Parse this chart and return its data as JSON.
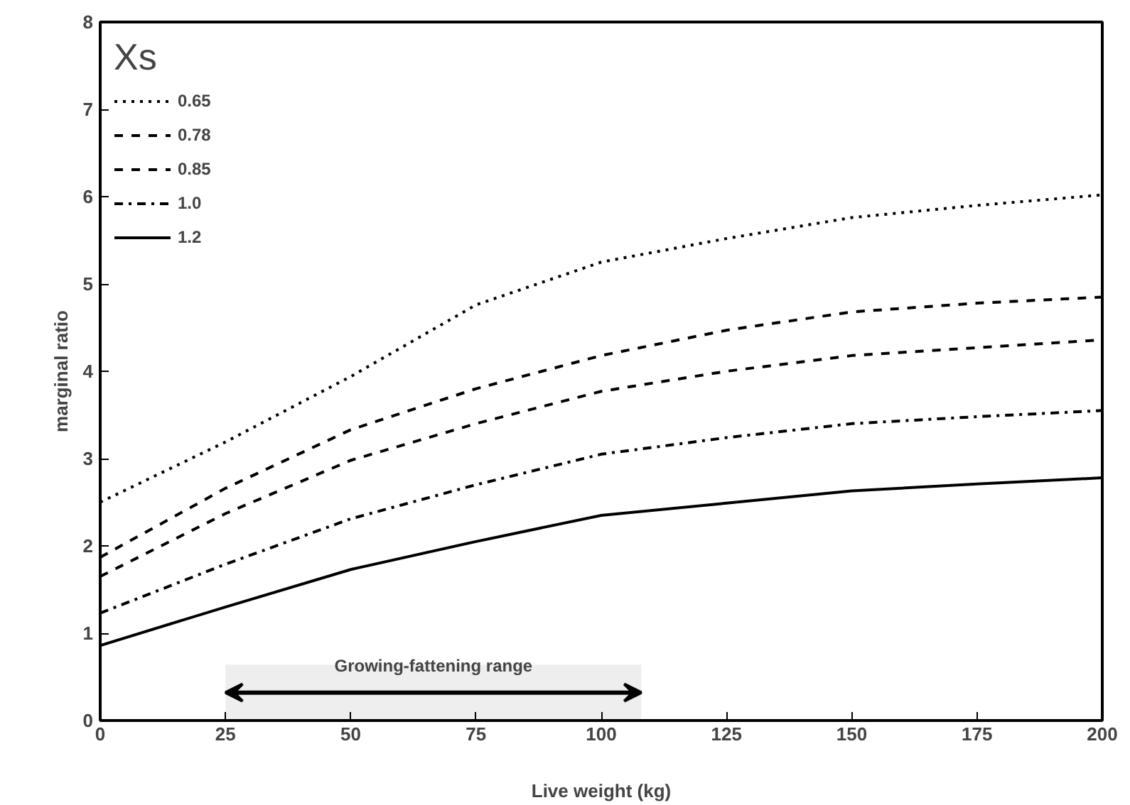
{
  "chart_data": {
    "type": "line",
    "xlabel": "Live weight (kg)",
    "ylabel": "marginal ratio",
    "legend_title": "Xs",
    "legend": "top left",
    "grid": false,
    "x": [
      0,
      25,
      50,
      75,
      100,
      125,
      150,
      175,
      200
    ],
    "xlim": [
      0,
      200
    ],
    "xticks": [
      0,
      25,
      50,
      75,
      100,
      125,
      150,
      175,
      200
    ],
    "ylim": [
      0,
      8
    ],
    "yticks": [
      0,
      1,
      2,
      3,
      4,
      5,
      6,
      7,
      8
    ],
    "series": [
      {
        "name": "0.65",
        "color": "#000000",
        "line_style": "dotted",
        "values": [
          2.5,
          3.19,
          3.94,
          4.76,
          5.25,
          5.52,
          5.76,
          5.9,
          6.02
        ]
      },
      {
        "name": "0.78",
        "color": "#000000",
        "line_style": "dashed",
        "values": [
          1.87,
          2.66,
          3.33,
          3.8,
          4.18,
          4.47,
          4.68,
          4.78,
          4.85
        ]
      },
      {
        "name": "0.85",
        "color": "#000000",
        "line_style": "dashed",
        "values": [
          1.65,
          2.37,
          2.98,
          3.4,
          3.77,
          4.0,
          4.18,
          4.27,
          4.36
        ]
      },
      {
        "name": "1.0",
        "color": "#000000",
        "line_style": "dashdot",
        "values": [
          1.23,
          1.79,
          2.31,
          2.7,
          3.05,
          3.24,
          3.4,
          3.48,
          3.55
        ]
      },
      {
        "name": "1.2",
        "color": "#000000",
        "line_style": "solid",
        "values": [
          0.86,
          1.3,
          1.73,
          2.05,
          2.35,
          2.49,
          2.63,
          2.71,
          2.78
        ]
      }
    ],
    "bands": [
      {
        "axis": "x",
        "from": 25,
        "to": 108,
        "label": "Growing-fattening range",
        "color": "#eeeeee"
      }
    ]
  }
}
